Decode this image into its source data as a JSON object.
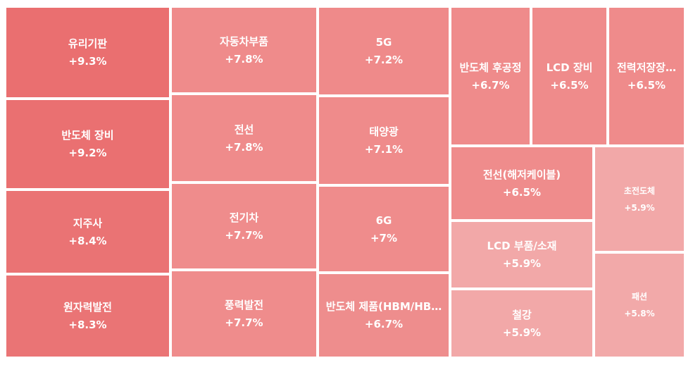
{
  "chart_data": {
    "type": "treemap",
    "items": [
      {
        "name": "유리기판",
        "change": "+9.3%",
        "value": 9.3,
        "color": "#ea6f70"
      },
      {
        "name": "반도체 장비",
        "change": "+9.2%",
        "value": 9.2,
        "color": "#ea7071"
      },
      {
        "name": "지주사",
        "change": "+8.4%",
        "value": 8.4,
        "color": "#ea7374"
      },
      {
        "name": "원자력발전",
        "change": "+8.3%",
        "value": 8.3,
        "color": "#ea7475"
      },
      {
        "name": "자동차부품",
        "change": "+7.8%",
        "value": 7.8,
        "color": "#ef8b8b"
      },
      {
        "name": "전선",
        "change": "+7.8%",
        "value": 7.8,
        "color": "#ef8b8b"
      },
      {
        "name": "전기차",
        "change": "+7.7%",
        "value": 7.7,
        "color": "#ef8c8c"
      },
      {
        "name": "풍력발전",
        "change": "+7.7%",
        "value": 7.7,
        "color": "#ef8c8c"
      },
      {
        "name": "5G",
        "change": "+7.2%",
        "value": 7.2,
        "color": "#ef8a8a"
      },
      {
        "name": "태양광",
        "change": "+7.1%",
        "value": 7.1,
        "color": "#ef8b8b"
      },
      {
        "name": "6G",
        "change": "+7%",
        "value": 7.0,
        "color": "#ef8c8c"
      },
      {
        "name": "반도체 제품(HBM/HB…",
        "change": "+6.7%",
        "value": 6.7,
        "color": "#ee8d8d"
      },
      {
        "name": "반도체 후공정",
        "change": "+6.7%",
        "value": 6.7,
        "color": "#ef8b8b"
      },
      {
        "name": "LCD 장비",
        "change": "+6.5%",
        "value": 6.5,
        "color": "#ef8b8b"
      },
      {
        "name": "전력저장장…",
        "change": "+6.5%",
        "value": 6.5,
        "color": "#ef8b8b"
      },
      {
        "name": "전선(해저케이블)",
        "change": "+6.5%",
        "value": 6.5,
        "color": "#ef8c8c"
      },
      {
        "name": "LCD 부품/소재",
        "change": "+5.9%",
        "value": 5.9,
        "color": "#f2a8a8"
      },
      {
        "name": "철강",
        "change": "+5.9%",
        "value": 5.9,
        "color": "#f2a8a8"
      },
      {
        "name": "초전도체",
        "change": "+5.9%",
        "value": 5.9,
        "color": "#f2a8a8"
      },
      {
        "name": "패션",
        "change": "+5.8%",
        "value": 5.8,
        "color": "#f2a9a9"
      }
    ]
  }
}
